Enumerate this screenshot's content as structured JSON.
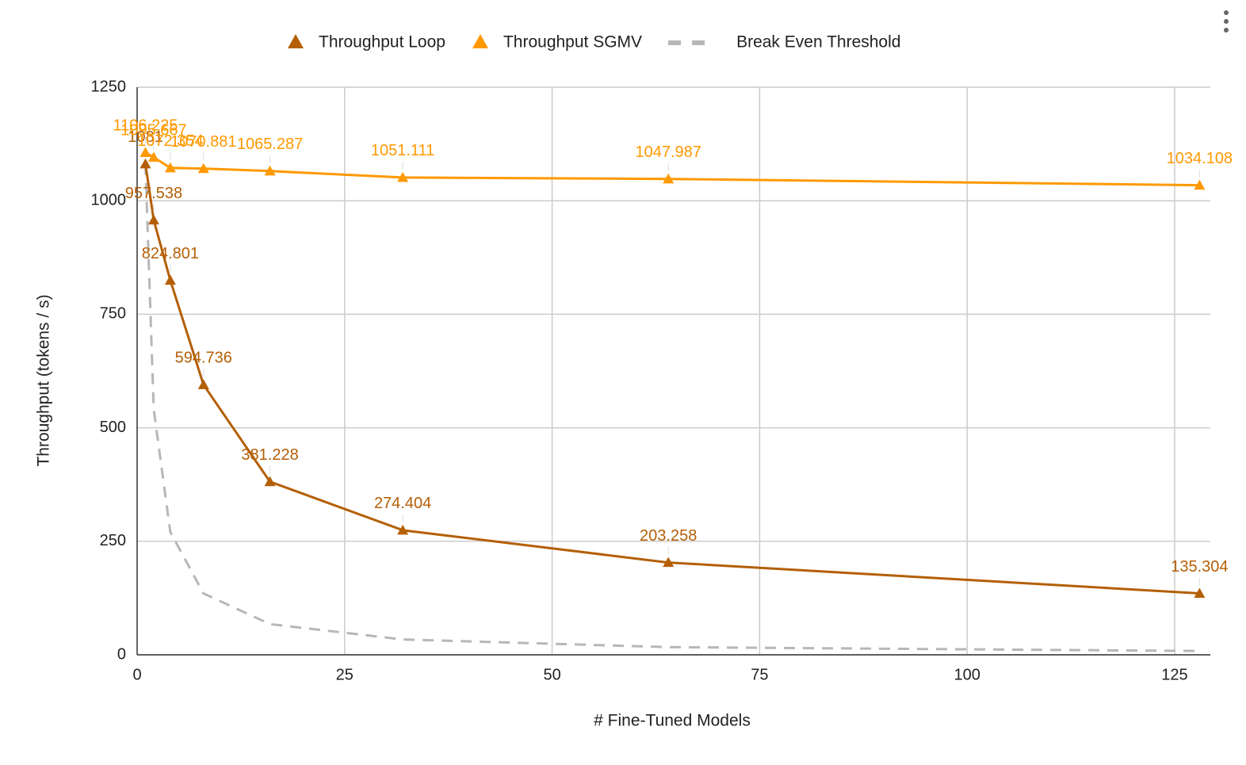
{
  "chart_data": {
    "type": "line",
    "x_label": "# Fine-Tuned Models",
    "y_label": "Throughput (tokens / s)",
    "x": [
      1,
      2,
      4,
      8,
      16,
      32,
      64,
      128
    ],
    "series": [
      {
        "name": "Throughput Loop",
        "color": "#b45f06",
        "marker": "triangle",
        "labels": true,
        "values": [
          1081,
          957.538,
          824.801,
          594.736,
          381.228,
          274.404,
          203.258,
          135.304
        ]
      },
      {
        "name": "Throughput SGMV",
        "color": "#ff9900",
        "marker": "triangle",
        "labels": true,
        "values": [
          1106.225,
          1095.667,
          1072.354,
          1070.881,
          1065.287,
          1051.111,
          1047.987,
          1034.108
        ]
      },
      {
        "name": "Break Even Threshold",
        "color": "#b7b7b7",
        "dashed": true,
        "values": [
          1081,
          540.5,
          270.3,
          135.1,
          67.6,
          33.8,
          16.9,
          8.4
        ]
      }
    ],
    "xlim": [
      0,
      129.3
    ],
    "xticks": [
      0,
      25,
      50,
      75,
      100,
      125
    ],
    "ylim": [
      0,
      1250
    ],
    "yticks": [
      0,
      250,
      500,
      750,
      1000,
      1250
    ],
    "grid": true,
    "legend": "top"
  }
}
